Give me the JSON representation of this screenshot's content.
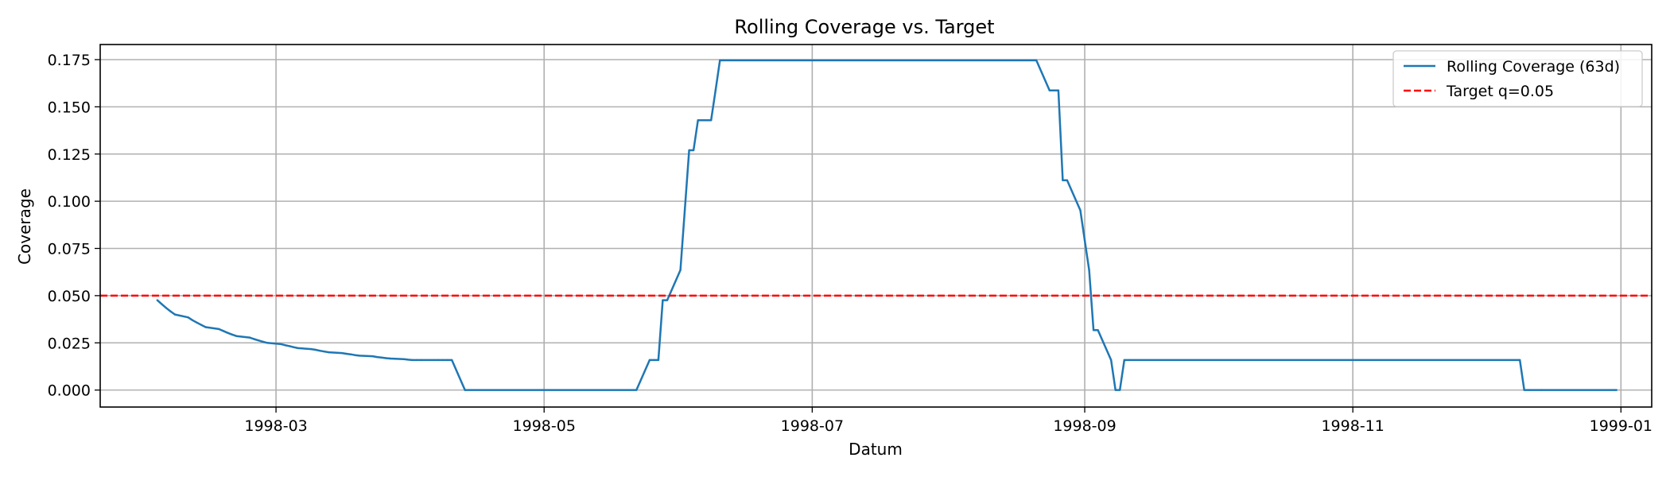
{
  "chart_data": {
    "type": "line",
    "title": "Rolling Coverage vs. Target",
    "xlabel": "Datum",
    "ylabel": "Coverage",
    "xlim": [
      "1998-01-20",
      "1999-01-08"
    ],
    "ylim": [
      -0.009,
      0.183
    ],
    "xticks": [
      "1998-03-01",
      "1998-05-01",
      "1998-07-01",
      "1998-09-01",
      "1998-11-01",
      "1999-01-01"
    ],
    "xtick_labels": [
      "1998-03",
      "1998-05",
      "1998-07",
      "1998-09",
      "1998-11",
      "1999-01"
    ],
    "yticks": [
      0.0,
      0.025,
      0.05,
      0.075,
      0.1,
      0.125,
      0.15,
      0.175
    ],
    "ytick_labels": [
      "0.000",
      "0.025",
      "0.050",
      "0.075",
      "0.100",
      "0.125",
      "0.150",
      "0.175"
    ],
    "grid": true,
    "legend_position": "top-right",
    "series": [
      {
        "name": "Rolling Coverage (63d)",
        "color": "#1f77b4",
        "style": "solid",
        "x": [
          "1998-02-02",
          "1998-02-03",
          "1998-02-04",
          "1998-02-05",
          "1998-02-06",
          "1998-02-09",
          "1998-02-10",
          "1998-02-11",
          "1998-02-12",
          "1998-02-13",
          "1998-02-16",
          "1998-02-17",
          "1998-02-18",
          "1998-02-19",
          "1998-02-20",
          "1998-02-23",
          "1998-02-24",
          "1998-02-25",
          "1998-02-26",
          "1998-02-27",
          "1998-03-02",
          "1998-03-03",
          "1998-03-04",
          "1998-03-05",
          "1998-03-06",
          "1998-03-09",
          "1998-03-10",
          "1998-03-11",
          "1998-03-12",
          "1998-03-13",
          "1998-03-16",
          "1998-03-17",
          "1998-03-18",
          "1998-03-19",
          "1998-03-20",
          "1998-03-23",
          "1998-03-24",
          "1998-03-25",
          "1998-03-26",
          "1998-03-27",
          "1998-03-30",
          "1998-03-31",
          "1998-04-01",
          "1998-04-02",
          "1998-04-03",
          "1998-04-06",
          "1998-04-07",
          "1998-04-08",
          "1998-04-09",
          "1998-04-10",
          "1998-04-13",
          "1998-05-22",
          "1998-05-25",
          "1998-05-26",
          "1998-05-27",
          "1998-05-28",
          "1998-05-29",
          "1998-06-01",
          "1998-06-02",
          "1998-06-03",
          "1998-06-04",
          "1998-06-05",
          "1998-06-08",
          "1998-06-09",
          "1998-06-10",
          "1998-08-21",
          "1998-08-24",
          "1998-08-25",
          "1998-08-26",
          "1998-08-27",
          "1998-08-28",
          "1998-08-31",
          "1998-09-01",
          "1998-09-02",
          "1998-09-03",
          "1998-09-04",
          "1998-09-07",
          "1998-09-08",
          "1998-09-09",
          "1998-09-10",
          "1998-09-11",
          "1998-12-09",
          "1998-12-10",
          "1998-12-11",
          "1998-12-14",
          "1998-12-31"
        ],
        "y": [
          0.0476,
          0.0455,
          0.0435,
          0.0417,
          0.04,
          0.0385,
          0.037,
          0.0357,
          0.0345,
          0.0333,
          0.0323,
          0.0313,
          0.0303,
          0.0294,
          0.0286,
          0.0278,
          0.027,
          0.0263,
          0.0256,
          0.025,
          0.0244,
          0.0238,
          0.0233,
          0.0227,
          0.0222,
          0.0217,
          0.0213,
          0.0208,
          0.0204,
          0.02,
          0.0196,
          0.0192,
          0.0189,
          0.0185,
          0.0182,
          0.0179,
          0.0175,
          0.0172,
          0.0169,
          0.0167,
          0.0164,
          0.0161,
          0.0159,
          0.0159,
          0.0159,
          0.0159,
          0.0159,
          0.0159,
          0.0159,
          0.0159,
          0.0,
          0.0,
          0.0159,
          0.0159,
          0.0159,
          0.0476,
          0.0476,
          0.0635,
          0.0952,
          0.127,
          0.127,
          0.1429,
          0.1429,
          0.1587,
          0.1746,
          0.1746,
          0.1587,
          0.1587,
          0.1587,
          0.1111,
          0.1111,
          0.0952,
          0.0794,
          0.0635,
          0.0317,
          0.0317,
          0.0159,
          0.0,
          0.0,
          0.0159,
          0.0159,
          0.0159,
          0.0,
          0.0,
          0.0,
          0.0
        ]
      },
      {
        "name": "Target q=0.05",
        "color": "#ff0000",
        "style": "dashed",
        "y_constant": 0.05
      }
    ]
  }
}
